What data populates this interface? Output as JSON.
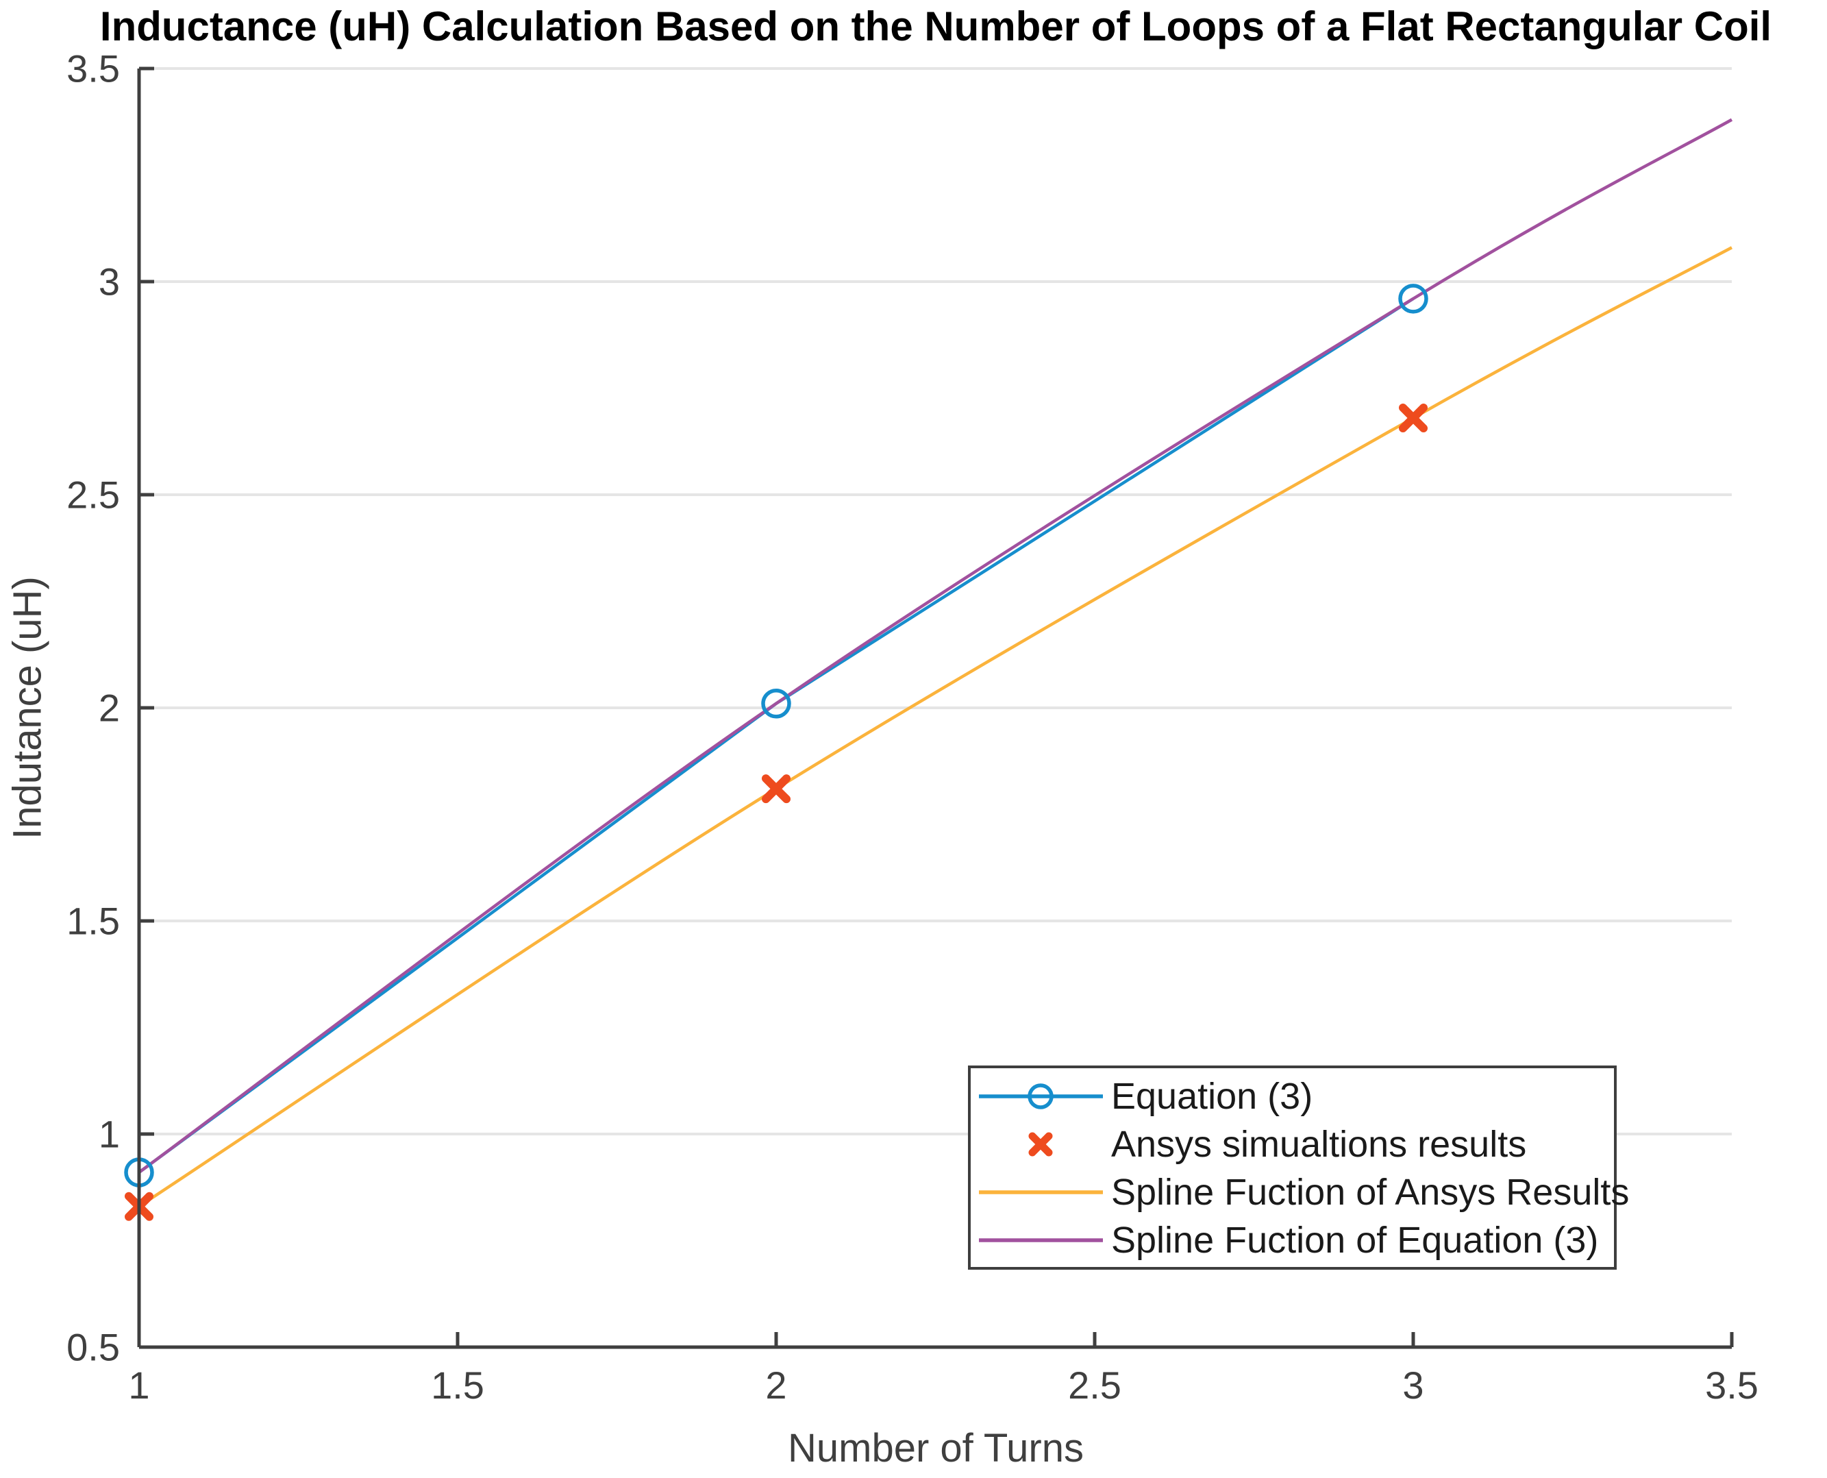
{
  "chart_data": {
    "type": "line",
    "title": "Inductance (uH) Calculation Based on the Number of Loops of a Flat Rectangular Coil",
    "xlabel": "Number of Turns",
    "ylabel": "Indutance (uH)",
    "xlim": [
      1,
      3.5
    ],
    "ylim": [
      0.5,
      3.5
    ],
    "xticks": [
      1,
      1.5,
      2,
      2.5,
      3,
      3.5
    ],
    "yticks": [
      0.5,
      1,
      1.5,
      2,
      2.5,
      3,
      3.5
    ],
    "grid": "horizontal",
    "legend_position": "inside-lower-right",
    "colors": {
      "grid": "#E5E5E5",
      "axis": "#3F3F3F",
      "tick_label": "#3F3F3F",
      "title": "#000000",
      "legend_border": "#3E3E3E",
      "background": "#FFFFFF"
    },
    "series": [
      {
        "name": "Equation (3)",
        "type": "line",
        "marker": "open-circle",
        "legend_glyph": "line-circle",
        "color": "#168ECD",
        "x": [
          1,
          2,
          3
        ],
        "y": [
          0.91,
          2.01,
          2.96
        ]
      },
      {
        "name": "Ansys simualtions results",
        "type": "scatter",
        "marker": "x",
        "legend_glyph": "x",
        "color": "#EE4B1E",
        "x": [
          1,
          2,
          3
        ],
        "y": [
          0.83,
          1.81,
          2.68
        ]
      },
      {
        "name": "Spline Fuction of Ansys Results",
        "type": "spline",
        "marker": "none",
        "legend_glyph": "line",
        "color": "#FBB33C",
        "x": [
          1,
          2,
          3,
          3.5
        ],
        "y": [
          0.83,
          1.81,
          2.68,
          3.08
        ]
      },
      {
        "name": "Spline Fuction of Equation (3)",
        "type": "spline",
        "marker": "none",
        "legend_glyph": "line",
        "color": "#A1519E",
        "x": [
          1,
          2,
          3,
          3.5
        ],
        "y": [
          0.91,
          2.01,
          2.96,
          3.38
        ]
      }
    ]
  }
}
